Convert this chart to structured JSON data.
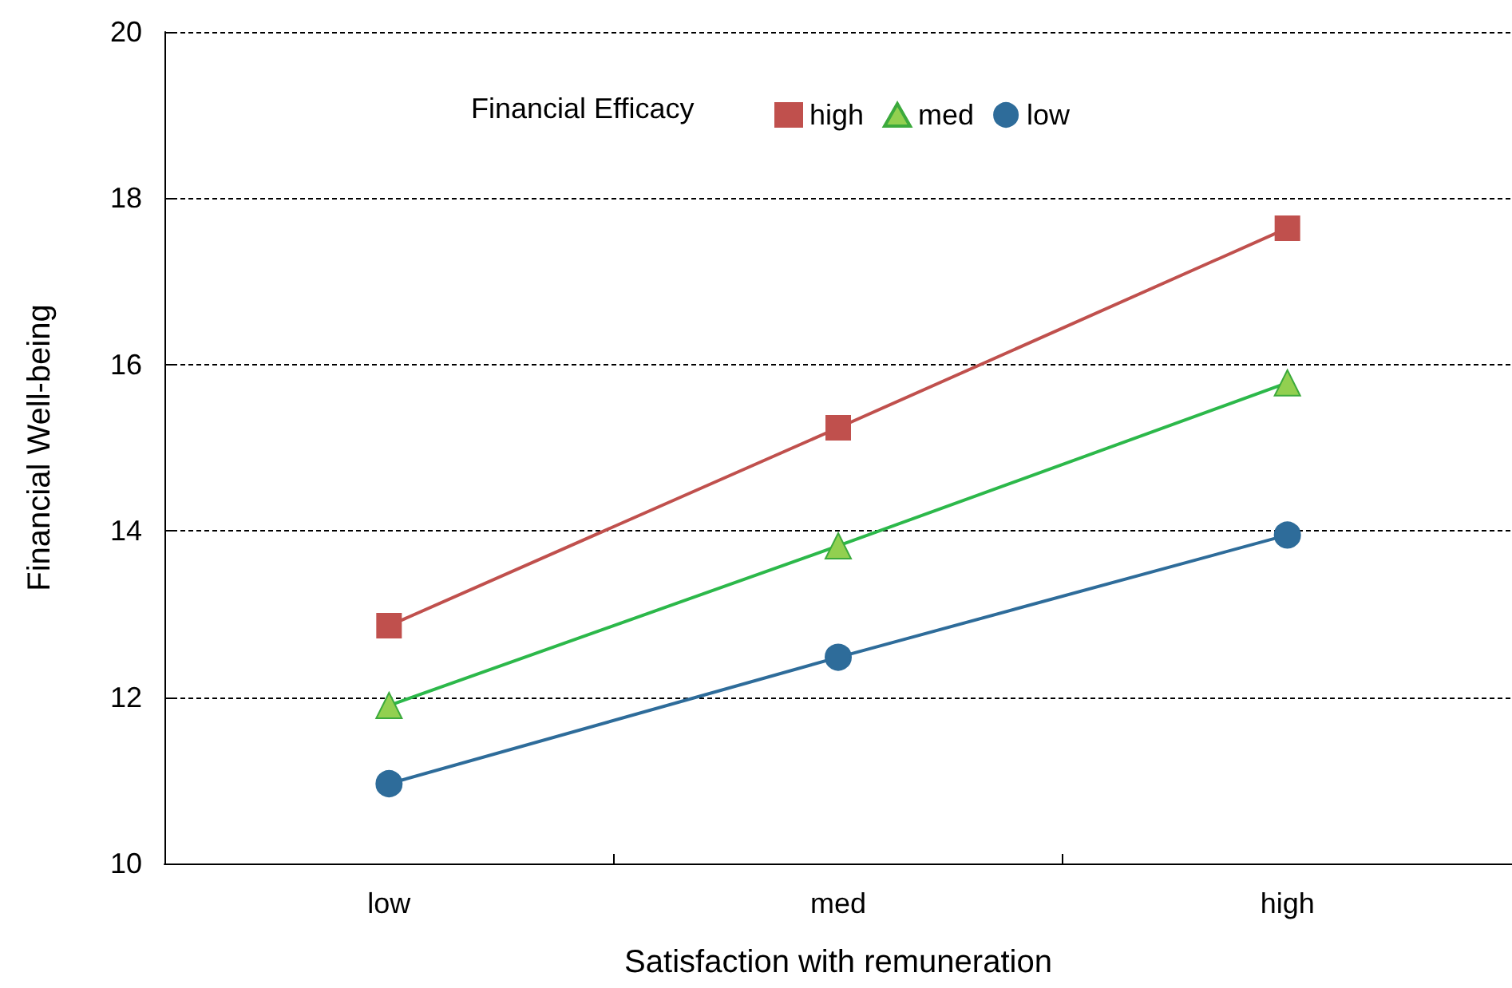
{
  "chart_data": {
    "type": "line",
    "xlabel": "Satisfaction with remuneration",
    "ylabel": "Financial Well-being",
    "legend_title": "Financial Efficacy",
    "categories": [
      "low",
      "med",
      "high"
    ],
    "series": [
      {
        "name": "high",
        "color": "#c0504d",
        "marker": "square",
        "values": [
          12.86,
          15.24,
          17.64
        ]
      },
      {
        "name": "med",
        "color": "#92d050",
        "marker": "triangle",
        "values": [
          11.9,
          13.82,
          15.78
        ]
      },
      {
        "name": "low",
        "color": "#2e6c9a",
        "marker": "circle",
        "values": [
          10.96,
          12.48,
          13.95
        ]
      }
    ],
    "ylim": [
      10,
      20
    ],
    "yticks": [
      10,
      12,
      14,
      16,
      18,
      20
    ],
    "grid": "y",
    "legend": "top",
    "line_style": "solid"
  }
}
